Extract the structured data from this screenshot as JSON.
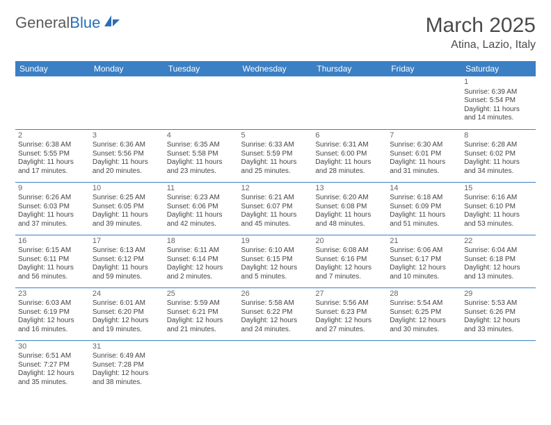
{
  "logo": {
    "part1": "General",
    "part2": "Blue"
  },
  "title": "March 2025",
  "location": "Atina, Lazio, Italy",
  "colors": {
    "header_bg": "#3b7fc4",
    "header_text": "#ffffff",
    "border": "#3b7fc4",
    "logo_accent": "#2a6fb5",
    "text": "#444444"
  },
  "weekdays": [
    "Sunday",
    "Monday",
    "Tuesday",
    "Wednesday",
    "Thursday",
    "Friday",
    "Saturday"
  ],
  "weeks": [
    [
      null,
      null,
      null,
      null,
      null,
      null,
      {
        "n": "1",
        "sr": "Sunrise: 6:39 AM",
        "ss": "Sunset: 5:54 PM",
        "d1": "Daylight: 11 hours",
        "d2": "and 14 minutes."
      }
    ],
    [
      {
        "n": "2",
        "sr": "Sunrise: 6:38 AM",
        "ss": "Sunset: 5:55 PM",
        "d1": "Daylight: 11 hours",
        "d2": "and 17 minutes."
      },
      {
        "n": "3",
        "sr": "Sunrise: 6:36 AM",
        "ss": "Sunset: 5:56 PM",
        "d1": "Daylight: 11 hours",
        "d2": "and 20 minutes."
      },
      {
        "n": "4",
        "sr": "Sunrise: 6:35 AM",
        "ss": "Sunset: 5:58 PM",
        "d1": "Daylight: 11 hours",
        "d2": "and 23 minutes."
      },
      {
        "n": "5",
        "sr": "Sunrise: 6:33 AM",
        "ss": "Sunset: 5:59 PM",
        "d1": "Daylight: 11 hours",
        "d2": "and 25 minutes."
      },
      {
        "n": "6",
        "sr": "Sunrise: 6:31 AM",
        "ss": "Sunset: 6:00 PM",
        "d1": "Daylight: 11 hours",
        "d2": "and 28 minutes."
      },
      {
        "n": "7",
        "sr": "Sunrise: 6:30 AM",
        "ss": "Sunset: 6:01 PM",
        "d1": "Daylight: 11 hours",
        "d2": "and 31 minutes."
      },
      {
        "n": "8",
        "sr": "Sunrise: 6:28 AM",
        "ss": "Sunset: 6:02 PM",
        "d1": "Daylight: 11 hours",
        "d2": "and 34 minutes."
      }
    ],
    [
      {
        "n": "9",
        "sr": "Sunrise: 6:26 AM",
        "ss": "Sunset: 6:03 PM",
        "d1": "Daylight: 11 hours",
        "d2": "and 37 minutes."
      },
      {
        "n": "10",
        "sr": "Sunrise: 6:25 AM",
        "ss": "Sunset: 6:05 PM",
        "d1": "Daylight: 11 hours",
        "d2": "and 39 minutes."
      },
      {
        "n": "11",
        "sr": "Sunrise: 6:23 AM",
        "ss": "Sunset: 6:06 PM",
        "d1": "Daylight: 11 hours",
        "d2": "and 42 minutes."
      },
      {
        "n": "12",
        "sr": "Sunrise: 6:21 AM",
        "ss": "Sunset: 6:07 PM",
        "d1": "Daylight: 11 hours",
        "d2": "and 45 minutes."
      },
      {
        "n": "13",
        "sr": "Sunrise: 6:20 AM",
        "ss": "Sunset: 6:08 PM",
        "d1": "Daylight: 11 hours",
        "d2": "and 48 minutes."
      },
      {
        "n": "14",
        "sr": "Sunrise: 6:18 AM",
        "ss": "Sunset: 6:09 PM",
        "d1": "Daylight: 11 hours",
        "d2": "and 51 minutes."
      },
      {
        "n": "15",
        "sr": "Sunrise: 6:16 AM",
        "ss": "Sunset: 6:10 PM",
        "d1": "Daylight: 11 hours",
        "d2": "and 53 minutes."
      }
    ],
    [
      {
        "n": "16",
        "sr": "Sunrise: 6:15 AM",
        "ss": "Sunset: 6:11 PM",
        "d1": "Daylight: 11 hours",
        "d2": "and 56 minutes."
      },
      {
        "n": "17",
        "sr": "Sunrise: 6:13 AM",
        "ss": "Sunset: 6:12 PM",
        "d1": "Daylight: 11 hours",
        "d2": "and 59 minutes."
      },
      {
        "n": "18",
        "sr": "Sunrise: 6:11 AM",
        "ss": "Sunset: 6:14 PM",
        "d1": "Daylight: 12 hours",
        "d2": "and 2 minutes."
      },
      {
        "n": "19",
        "sr": "Sunrise: 6:10 AM",
        "ss": "Sunset: 6:15 PM",
        "d1": "Daylight: 12 hours",
        "d2": "and 5 minutes."
      },
      {
        "n": "20",
        "sr": "Sunrise: 6:08 AM",
        "ss": "Sunset: 6:16 PM",
        "d1": "Daylight: 12 hours",
        "d2": "and 7 minutes."
      },
      {
        "n": "21",
        "sr": "Sunrise: 6:06 AM",
        "ss": "Sunset: 6:17 PM",
        "d1": "Daylight: 12 hours",
        "d2": "and 10 minutes."
      },
      {
        "n": "22",
        "sr": "Sunrise: 6:04 AM",
        "ss": "Sunset: 6:18 PM",
        "d1": "Daylight: 12 hours",
        "d2": "and 13 minutes."
      }
    ],
    [
      {
        "n": "23",
        "sr": "Sunrise: 6:03 AM",
        "ss": "Sunset: 6:19 PM",
        "d1": "Daylight: 12 hours",
        "d2": "and 16 minutes."
      },
      {
        "n": "24",
        "sr": "Sunrise: 6:01 AM",
        "ss": "Sunset: 6:20 PM",
        "d1": "Daylight: 12 hours",
        "d2": "and 19 minutes."
      },
      {
        "n": "25",
        "sr": "Sunrise: 5:59 AM",
        "ss": "Sunset: 6:21 PM",
        "d1": "Daylight: 12 hours",
        "d2": "and 21 minutes."
      },
      {
        "n": "26",
        "sr": "Sunrise: 5:58 AM",
        "ss": "Sunset: 6:22 PM",
        "d1": "Daylight: 12 hours",
        "d2": "and 24 minutes."
      },
      {
        "n": "27",
        "sr": "Sunrise: 5:56 AM",
        "ss": "Sunset: 6:23 PM",
        "d1": "Daylight: 12 hours",
        "d2": "and 27 minutes."
      },
      {
        "n": "28",
        "sr": "Sunrise: 5:54 AM",
        "ss": "Sunset: 6:25 PM",
        "d1": "Daylight: 12 hours",
        "d2": "and 30 minutes."
      },
      {
        "n": "29",
        "sr": "Sunrise: 5:53 AM",
        "ss": "Sunset: 6:26 PM",
        "d1": "Daylight: 12 hours",
        "d2": "and 33 minutes."
      }
    ],
    [
      {
        "n": "30",
        "sr": "Sunrise: 6:51 AM",
        "ss": "Sunset: 7:27 PM",
        "d1": "Daylight: 12 hours",
        "d2": "and 35 minutes."
      },
      {
        "n": "31",
        "sr": "Sunrise: 6:49 AM",
        "ss": "Sunset: 7:28 PM",
        "d1": "Daylight: 12 hours",
        "d2": "and 38 minutes."
      },
      null,
      null,
      null,
      null,
      null
    ]
  ]
}
